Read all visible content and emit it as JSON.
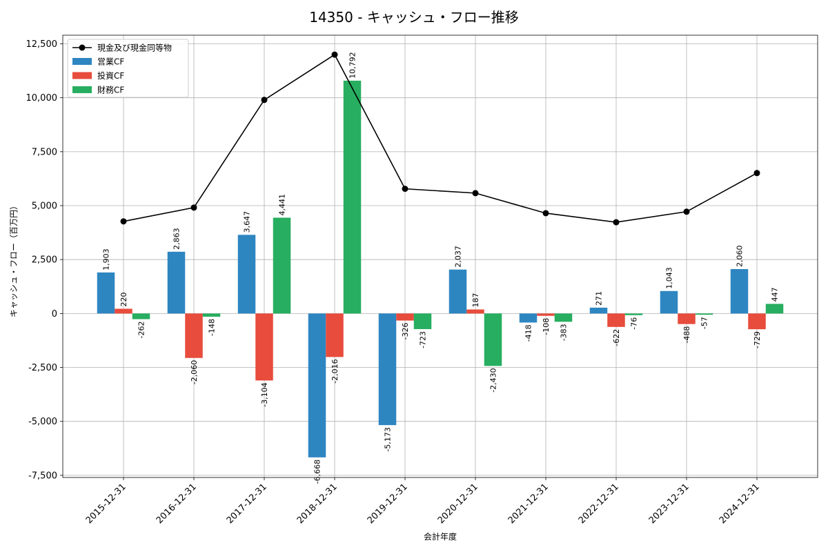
{
  "chart_data": {
    "type": "bar",
    "title": "14350 - キャッシュ・フロー推移",
    "xlabel": "会計年度",
    "ylabel": "キャッシュ・フロー（百万円）",
    "ylim": [
      -7600,
      12900
    ],
    "yticks": [
      -7500,
      -5000,
      -2500,
      0,
      2500,
      5000,
      7500,
      10000,
      12500
    ],
    "ytick_labels": [
      "-7,500",
      "-5,000",
      "-2,500",
      "0",
      "2,500",
      "5,000",
      "7,500",
      "10,000",
      "12,500"
    ],
    "grid": true,
    "legend_position": "top-left",
    "categories": [
      "2015-12-31",
      "2016-12-31",
      "2017-12-31",
      "2018-12-31",
      "2019-12-31",
      "2020-12-31",
      "2021-12-31",
      "2022-12-31",
      "2023-12-31",
      "2024-12-31"
    ],
    "series": [
      {
        "name": "営業CF",
        "color": "#2e86c1",
        "values": [
          1903,
          2863,
          3647,
          -6668,
          -5173,
          2037,
          -418,
          271,
          1043,
          2060
        ],
        "labels": [
          "1,903",
          "2,863",
          "3,647",
          "-6,668",
          "-5,173",
          "2,037",
          "-418",
          "271",
          "1,043",
          "2,060"
        ]
      },
      {
        "name": "投資CF",
        "color": "#e74c3c",
        "values": [
          220,
          -2060,
          -3104,
          -2016,
          -326,
          187,
          -108,
          -622,
          -488,
          -729
        ],
        "labels": [
          "220",
          "-2,060",
          "-3,104",
          "-2,016",
          "-326",
          "187",
          "-108",
          "-622",
          "-488",
          "-729"
        ]
      },
      {
        "name": "財務CF",
        "color": "#27ae60",
        "values": [
          -262,
          -148,
          4441,
          10792,
          -723,
          -2430,
          -383,
          -76,
          -57,
          447
        ],
        "labels": [
          "-262",
          "-148",
          "4,441",
          "10,792",
          "-723",
          "-2,430",
          "-383",
          "-76",
          "-57",
          "447"
        ]
      }
    ],
    "line": {
      "name": "現金及び現金同等物",
      "color": "#000000",
      "values": [
        4270,
        4910,
        9900,
        12000,
        5780,
        5580,
        4650,
        4230,
        4720,
        6510
      ]
    }
  }
}
